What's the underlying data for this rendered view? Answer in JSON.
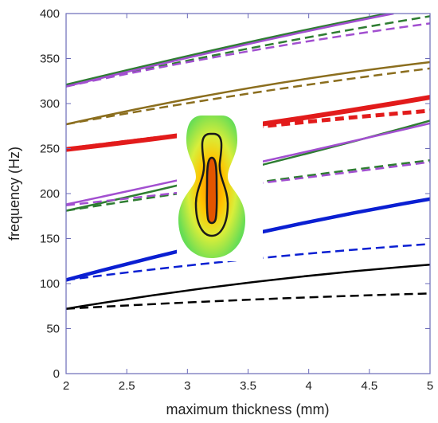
{
  "chart_data": {
    "type": "line",
    "title": "",
    "xlabel": "maximum thickness (mm)",
    "ylabel": "frequency (Hz)",
    "xlim": [
      2,
      5
    ],
    "ylim": [
      0,
      400
    ],
    "xticks": [
      2,
      2.5,
      3,
      3.5,
      4,
      4.5,
      5
    ],
    "xtick_labels": [
      "2",
      "2.5",
      "3",
      "3.5",
      "4",
      "4.5",
      "5"
    ],
    "yticks": [
      0,
      50,
      100,
      150,
      200,
      250,
      300,
      350,
      400
    ],
    "ytick_labels": [
      "0",
      "50",
      "100",
      "150",
      "200",
      "250",
      "300",
      "350",
      "400"
    ],
    "grid": false,
    "legend": "none",
    "inset": "thickness-contour-map",
    "colors": {
      "axis": "#6a6ab8",
      "text": "#222222",
      "black": "#000000",
      "blue": "#0a1fd2",
      "green": "#2e7d32",
      "purple": "#a24fd0",
      "red": "#e21b1b",
      "olive": "#8b6e1e"
    },
    "series": [
      {
        "color": "black",
        "style": "solid",
        "width": 2.5,
        "x": [
          2,
          3.5,
          5
        ],
        "values": [
          72,
          101,
          121
        ]
      },
      {
        "color": "black",
        "style": "dashed",
        "width": 2.5,
        "x": [
          2,
          3.5,
          5
        ],
        "values": [
          72,
          82,
          89
        ]
      },
      {
        "color": "blue",
        "style": "solid",
        "width": 4.5,
        "x": [
          2,
          3.5,
          5
        ],
        "values": [
          104,
          154,
          194
        ]
      },
      {
        "color": "blue",
        "style": "dashed",
        "width": 2.5,
        "x": [
          2,
          3.5,
          5
        ],
        "values": [
          104,
          127,
          144
        ]
      },
      {
        "color": "green",
        "style": "solid",
        "width": 2.5,
        "x": [
          2,
          3.5,
          5
        ],
        "values": [
          181,
          228,
          281
        ]
      },
      {
        "color": "green",
        "style": "dashed",
        "width": 2.5,
        "x": [
          2,
          3.5,
          5
        ],
        "values": [
          181,
          211,
          237
        ]
      },
      {
        "color": "purple",
        "style": "solid",
        "width": 2.5,
        "x": [
          2,
          3.5,
          5
        ],
        "values": [
          188,
          232,
          278
        ]
      },
      {
        "color": "purple",
        "style": "dashed",
        "width": 2.5,
        "x": [
          2,
          3.5,
          5
        ],
        "values": [
          187,
          210,
          235
        ]
      },
      {
        "color": "red",
        "style": "solid",
        "width": 6,
        "x": [
          2,
          3.5,
          5
        ],
        "values": [
          249,
          275,
          307
        ]
      },
      {
        "color": "red",
        "style": "dashed",
        "width": 5,
        "x": [
          2,
          3.5,
          5
        ],
        "values": [
          249,
          273,
          292
        ]
      },
      {
        "color": "olive",
        "style": "solid",
        "width": 2.5,
        "x": [
          2,
          3.5,
          5
        ],
        "values": [
          277,
          317,
          346
        ]
      },
      {
        "color": "olive",
        "style": "dashed",
        "width": 2.5,
        "x": [
          2,
          3.5,
          5
        ],
        "values": [
          277,
          311,
          339
        ]
      },
      {
        "color": "green",
        "style": "solid",
        "width": 2.5,
        "x": [
          2,
          3.5,
          4.65
        ],
        "values": [
          321,
          368,
          400
        ]
      },
      {
        "color": "green",
        "style": "dashed",
        "width": 2.5,
        "x": [
          2,
          3.5,
          5
        ],
        "values": [
          319,
          361,
          397
        ]
      },
      {
        "color": "purple",
        "style": "solid",
        "width": 2.5,
        "x": [
          2,
          3.5,
          4.7
        ],
        "values": [
          319,
          366,
          400
        ]
      },
      {
        "color": "purple",
        "style": "dashed",
        "width": 2.5,
        "x": [
          2,
          3.5,
          5
        ],
        "values": [
          319,
          358,
          389
        ]
      }
    ]
  }
}
